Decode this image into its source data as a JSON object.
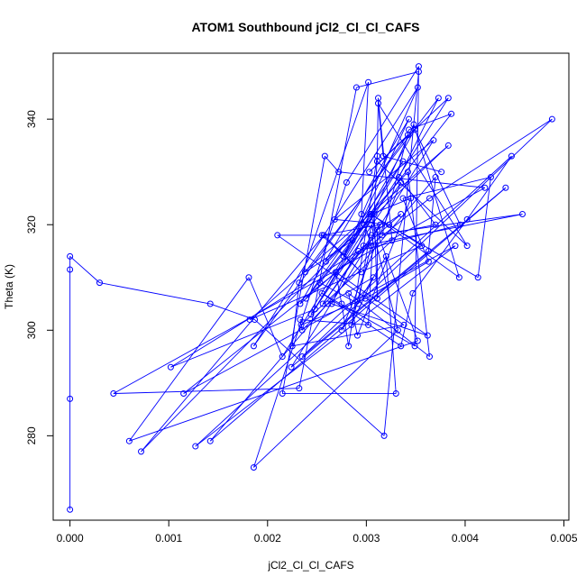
{
  "chart_data": {
    "type": "line",
    "title": "ATOM1 Southbound jCl2_Cl_Cl_CAFS",
    "xlabel": "jCl2_Cl_Cl_CAFS",
    "ylabel": "Theta (K)",
    "xlim": [
      -0.00017,
      0.00505
    ],
    "ylim": [
      264,
      352.5
    ],
    "xticks": [
      0.0,
      0.001,
      0.002,
      0.003,
      0.004,
      0.005
    ],
    "xtick_labels": [
      "0.000",
      "0.001",
      "0.002",
      "0.003",
      "0.004",
      "0.005"
    ],
    "yticks": [
      280,
      300,
      320,
      340
    ],
    "ytick_labels": [
      "280",
      "300",
      "320",
      "340"
    ],
    "grid": false,
    "series": [
      {
        "color": "#0000ff",
        "marker": "open-circle",
        "x": [
          0.0,
          0.0,
          0.0,
          0.0,
          0.0003,
          0.00142,
          0.00187,
          0.00318,
          0.00353,
          0.0029,
          0.00232,
          0.00044,
          0.0042,
          0.00272,
          0.00258,
          0.00215,
          0.0033,
          0.0032,
          0.00275,
          0.00335,
          0.00244,
          0.00383,
          0.00303,
          0.00342,
          0.00186,
          0.00352,
          0.00277,
          0.00349,
          0.00395,
          0.00292,
          0.00102,
          0.00248,
          0.00298,
          0.00072,
          0.00257,
          0.00295,
          0.00255,
          0.00314,
          0.00256,
          0.00297,
          0.00458,
          0.00305,
          0.0021,
          0.00338,
          0.00225,
          0.00232,
          0.00302,
          0.00295,
          0.00305,
          0.00285,
          0.00307,
          0.00261,
          0.00235,
          0.00233,
          0.00302,
          0.00311,
          0.00282,
          0.00275,
          0.00269,
          0.00362,
          0.00265,
          0.00348,
          0.00394,
          0.00305,
          0.00345,
          0.00291,
          0.00282,
          0.00364,
          0.00342,
          0.00259,
          0.00383,
          0.00182,
          0.00356,
          0.00323,
          0.00268,
          0.00368,
          0.00224,
          0.00441,
          0.00142,
          0.0037,
          0.00363,
          0.00235,
          0.00488,
          0.00364,
          0.00115,
          0.0039,
          0.00127,
          0.00447,
          0.00402,
          0.00347,
          0.00335,
          0.00255,
          0.00349,
          0.00353,
          0.0028,
          0.00186,
          0.00332,
          0.00305,
          0.00292,
          0.00253,
          0.00308,
          0.00311,
          0.00311,
          0.00335,
          0.00233,
          0.00343,
          0.00286,
          0.00238,
          0.00373,
          0.00333,
          0.0037,
          0.00316,
          0.00343,
          0.00386,
          0.00239,
          0.00337,
          0.00215,
          0.00181,
          0.0006,
          0.00352,
          0.00304,
          0.00413,
          0.00426,
          0.00337,
          0.00363,
          0.00299,
          0.00234,
          0.00326,
          0.00312,
          0.00311,
          0.00402,
          0.00312,
          0.00317,
          0.00376
        ],
        "y": [
          266,
          287,
          311.5,
          314,
          309,
          305,
          302,
          280,
          349,
          346,
          289,
          288,
          327,
          330,
          333,
          288,
          288,
          314,
          300,
          328,
          303,
          344,
          330,
          337,
          297,
          346,
          314,
          338,
          320,
          315,
          293,
          304,
          320,
          277,
          318,
          311,
          318,
          320,
          305,
          316,
          322,
          318,
          318,
          301,
          297,
          309,
          347,
          322,
          316,
          301,
          310,
          305,
          300,
          302,
          301,
          333,
          297,
          305,
          311,
          299,
          305,
          339,
          310,
          322,
          325,
          299,
          307,
          295,
          330,
          313,
          335,
          302,
          316,
          320,
          321,
          336,
          293,
          327,
          279,
          329,
          315,
          295,
          340,
          325,
          288,
          316,
          278,
          333,
          321,
          307,
          297,
          307,
          297,
          350,
          328,
          274,
          300,
          320,
          305,
          309,
          322,
          306,
          319,
          322,
          305,
          340,
          317,
          311,
          344,
          329,
          320,
          318,
          338,
          341,
          306,
          332,
          295,
          310,
          279,
          298,
          322,
          310,
          329,
          325,
          313,
          306,
          301,
          317,
          344,
          332,
          316,
          343,
          333,
          330
        ]
      }
    ]
  }
}
